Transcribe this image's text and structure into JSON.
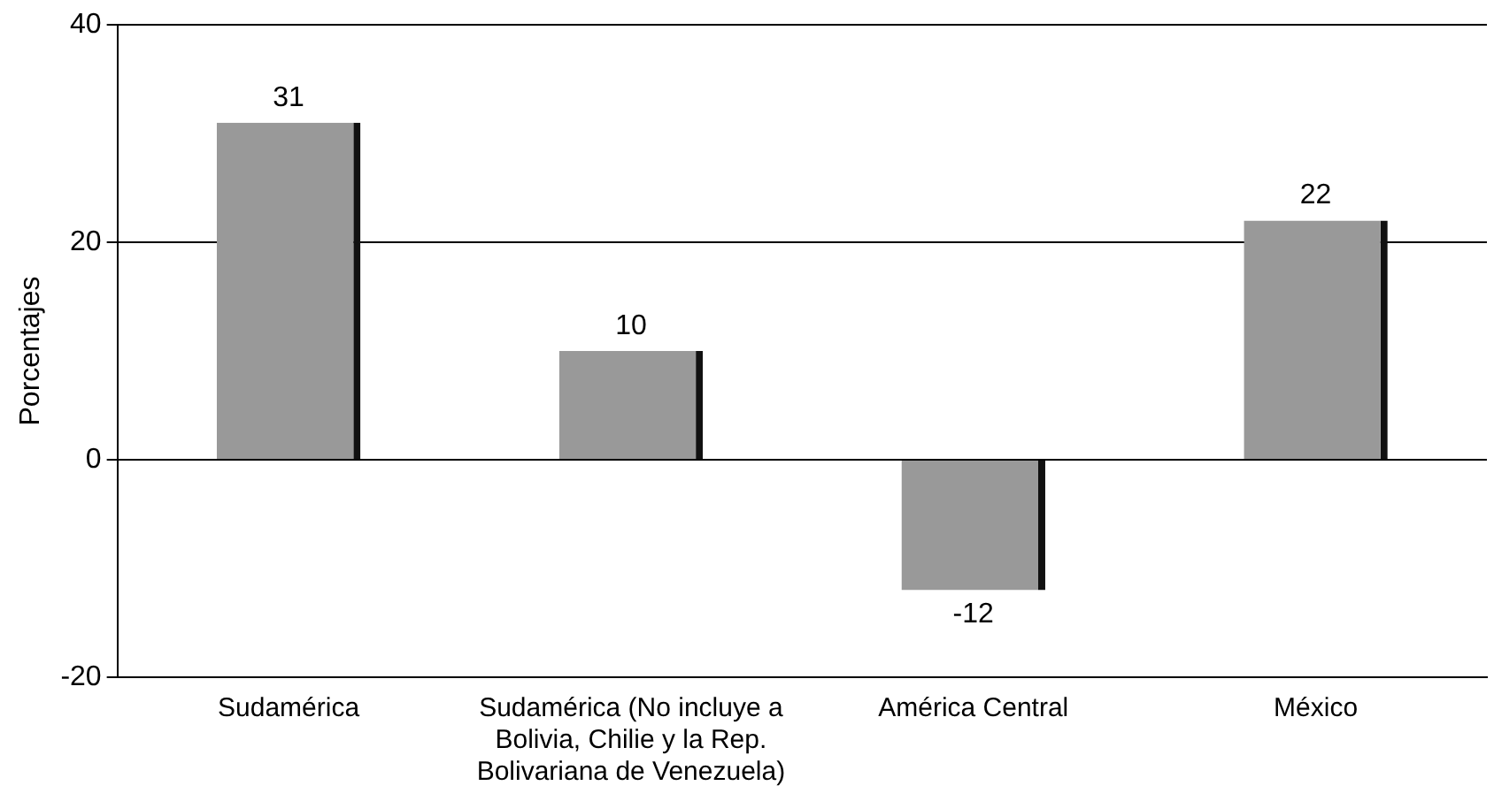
{
  "chart_data": {
    "type": "bar",
    "ylabel": "Porcentajes",
    "categories": [
      "Sudamérica",
      "Sudamérica (No incluye a Bolivia, Chilie y la Rep. Bolivariana de Venezuela)",
      "América Central",
      "México"
    ],
    "values": [
      31,
      10,
      -12,
      22
    ],
    "color": "#999999",
    "ylim": [
      -20,
      40
    ],
    "yticks": [
      -20,
      0,
      20,
      40
    ],
    "grid": "y",
    "data_labels": true
  }
}
